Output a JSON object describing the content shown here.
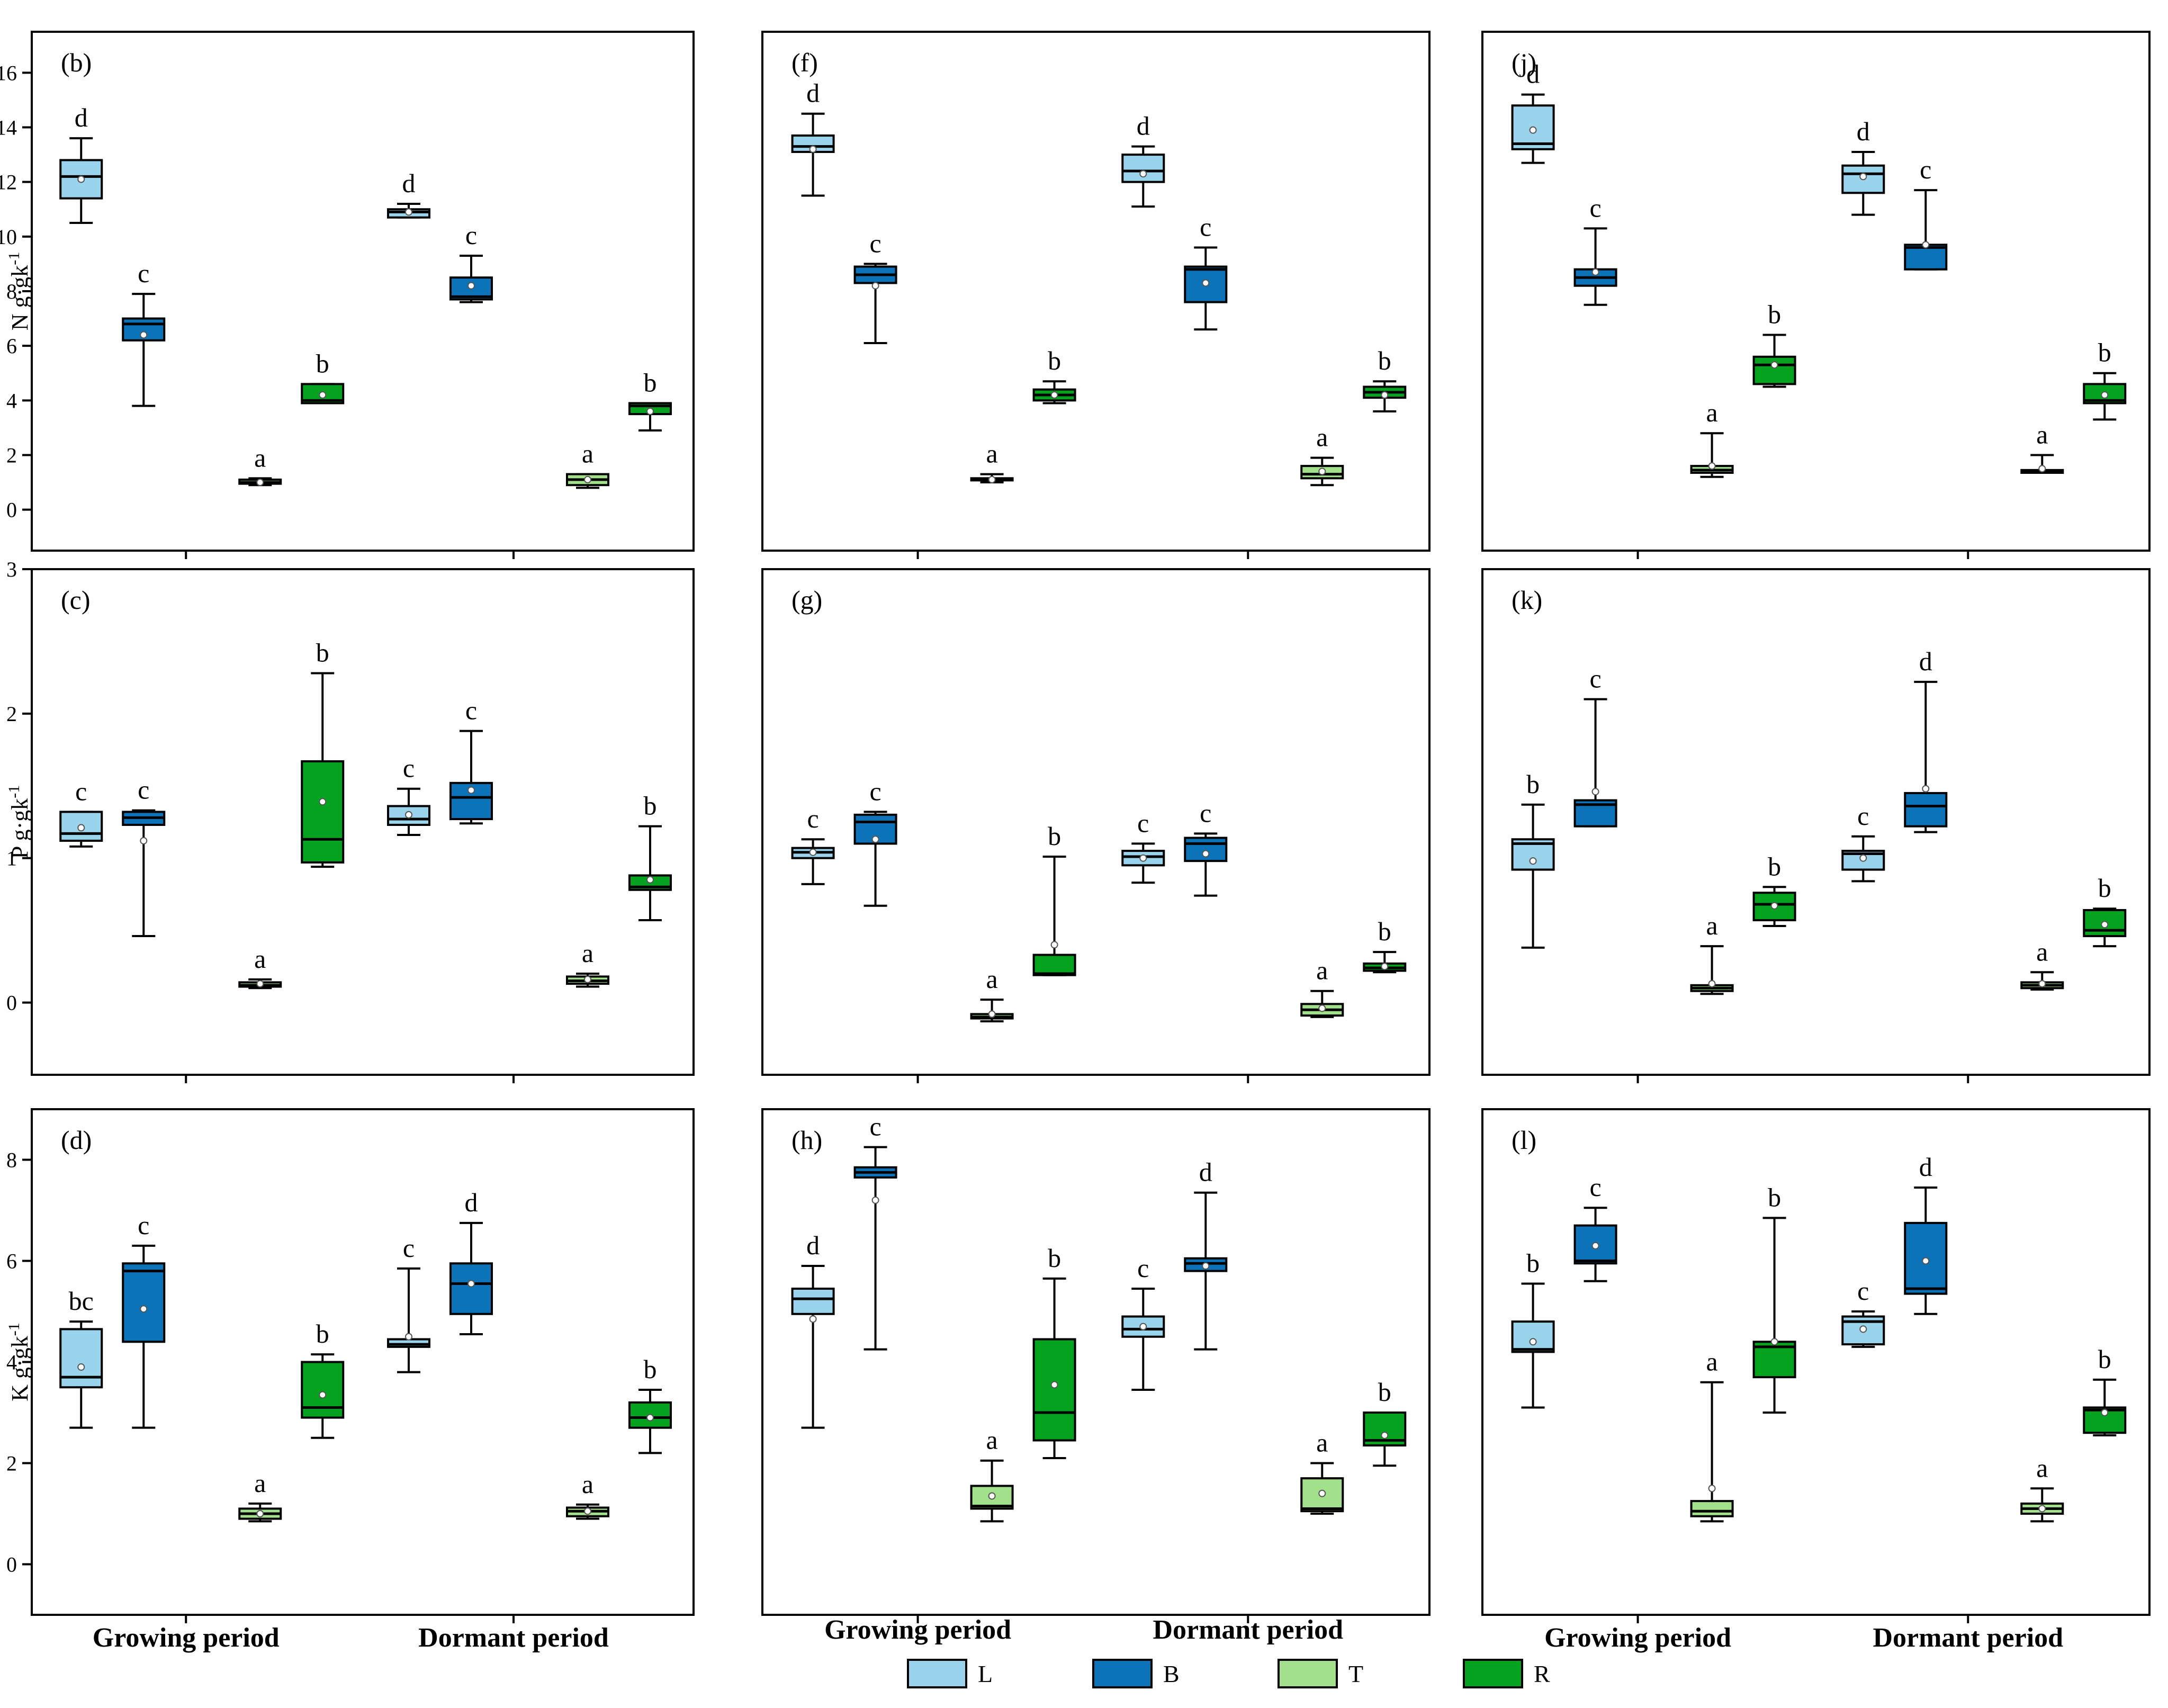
{
  "chart_data": {
    "type": "boxplot",
    "periods": [
      "Growing period",
      "Dormant period"
    ],
    "series_colors": {
      "L": "#99d3ec",
      "B": "#0c73b9",
      "T": "#a3e08c",
      "R": "#05a21f"
    },
    "legend": [
      {
        "key": "L",
        "label": "L"
      },
      {
        "key": "B",
        "label": "B"
      },
      {
        "key": "T",
        "label": "T"
      },
      {
        "key": "R",
        "label": "R"
      }
    ],
    "rows": [
      {
        "ylabel": "N g·gk",
        "ylabel_sup": "-1",
        "ylim": [
          -1.5,
          17.5
        ],
        "yticks": [
          0,
          2,
          4,
          6,
          8,
          10,
          12,
          14,
          16
        ]
      },
      {
        "ylabel": "P g·gk",
        "ylabel_sup": "-1",
        "ylim": [
          -0.5,
          3.0
        ],
        "yticks": [
          0,
          1,
          2,
          3
        ]
      },
      {
        "ylabel": "K g·gk",
        "ylabel_sup": "-1",
        "ylim": [
          -1.0,
          9.0
        ],
        "yticks": [
          0,
          2,
          4,
          6,
          8
        ]
      }
    ],
    "panels": [
      {
        "label": "(b)",
        "row": 0,
        "col": 0,
        "groups": [
          [
            {
              "s": "L",
              "min": 10.5,
              "q1": 11.4,
              "med": 12.2,
              "q3": 12.8,
              "max": 13.6,
              "mean": 12.1,
              "letter": "d"
            },
            {
              "s": "B",
              "min": 3.8,
              "q1": 6.2,
              "med": 6.8,
              "q3": 7.0,
              "max": 7.9,
              "mean": 6.4,
              "letter": "c"
            },
            {
              "s": "T",
              "min": 0.9,
              "q1": 0.95,
              "med": 1.0,
              "q3": 1.1,
              "max": 1.15,
              "mean": 1.0,
              "letter": "a"
            },
            {
              "s": "R",
              "min": 3.9,
              "q1": 3.9,
              "med": 4.0,
              "q3": 4.6,
              "max": 4.6,
              "mean": 4.2,
              "letter": "b"
            }
          ],
          [
            {
              "s": "L",
              "min": 10.7,
              "q1": 10.7,
              "med": 10.9,
              "q3": 11.0,
              "max": 11.2,
              "mean": 10.9,
              "letter": "d"
            },
            {
              "s": "B",
              "min": 7.6,
              "q1": 7.7,
              "med": 7.8,
              "q3": 8.5,
              "max": 9.3,
              "mean": 8.2,
              "letter": "c"
            },
            {
              "s": "T",
              "min": 0.8,
              "q1": 0.9,
              "med": 1.1,
              "q3": 1.3,
              "max": 1.3,
              "mean": 1.1,
              "letter": "a"
            },
            {
              "s": "R",
              "min": 2.9,
              "q1": 3.5,
              "med": 3.8,
              "q3": 3.9,
              "max": 3.9,
              "mean": 3.6,
              "letter": "b"
            }
          ]
        ]
      },
      {
        "label": "(f)",
        "row": 0,
        "col": 1,
        "groups": [
          [
            {
              "s": "L",
              "min": 11.5,
              "q1": 13.1,
              "med": 13.3,
              "q3": 13.7,
              "max": 14.5,
              "mean": 13.2,
              "letter": "d"
            },
            {
              "s": "B",
              "min": 6.1,
              "q1": 8.3,
              "med": 8.6,
              "q3": 8.9,
              "max": 9.0,
              "mean": 8.2,
              "letter": "c"
            },
            {
              "s": "T",
              "min": 1.0,
              "q1": 1.1,
              "med": 1.1,
              "q3": 1.15,
              "max": 1.3,
              "mean": 1.1,
              "letter": "a"
            },
            {
              "s": "R",
              "min": 3.9,
              "q1": 4.0,
              "med": 4.2,
              "q3": 4.4,
              "max": 4.7,
              "mean": 4.2,
              "letter": "b"
            }
          ],
          [
            {
              "s": "L",
              "min": 11.1,
              "q1": 12.0,
              "med": 12.4,
              "q3": 13.0,
              "max": 13.3,
              "mean": 12.3,
              "letter": "d"
            },
            {
              "s": "B",
              "min": 6.6,
              "q1": 7.6,
              "med": 8.8,
              "q3": 8.9,
              "max": 9.6,
              "mean": 8.3,
              "letter": "c"
            },
            {
              "s": "T",
              "min": 0.9,
              "q1": 1.15,
              "med": 1.3,
              "q3": 1.6,
              "max": 1.9,
              "mean": 1.4,
              "letter": "a"
            },
            {
              "s": "R",
              "min": 3.6,
              "q1": 4.1,
              "med": 4.3,
              "q3": 4.5,
              "max": 4.7,
              "mean": 4.2,
              "letter": "b"
            }
          ]
        ]
      },
      {
        "label": "(j)",
        "row": 0,
        "col": 2,
        "groups": [
          [
            {
              "s": "L",
              "min": 12.7,
              "q1": 13.2,
              "med": 13.4,
              "q3": 14.8,
              "max": 15.2,
              "mean": 13.9,
              "letter": "d"
            },
            {
              "s": "B",
              "min": 7.5,
              "q1": 8.2,
              "med": 8.5,
              "q3": 8.8,
              "max": 10.3,
              "mean": 8.7,
              "letter": "c"
            },
            {
              "s": "T",
              "min": 1.2,
              "q1": 1.35,
              "med": 1.45,
              "q3": 1.6,
              "max": 2.8,
              "mean": 1.6,
              "letter": "a"
            },
            {
              "s": "R",
              "min": 4.5,
              "q1": 4.6,
              "med": 5.3,
              "q3": 5.6,
              "max": 6.4,
              "mean": 5.3,
              "letter": "b"
            }
          ],
          [
            {
              "s": "L",
              "min": 10.8,
              "q1": 11.6,
              "med": 12.3,
              "q3": 12.6,
              "max": 13.1,
              "mean": 12.2,
              "letter": "d"
            },
            {
              "s": "B",
              "min": 8.8,
              "q1": 8.8,
              "med": 9.6,
              "q3": 9.7,
              "max": 11.7,
              "mean": 9.7,
              "letter": "c"
            },
            {
              "s": "T",
              "min": 1.35,
              "q1": 1.35,
              "med": 1.4,
              "q3": 1.45,
              "max": 2.0,
              "mean": 1.5,
              "letter": "a"
            },
            {
              "s": "R",
              "min": 3.3,
              "q1": 3.9,
              "med": 4.0,
              "q3": 4.6,
              "max": 5.0,
              "mean": 4.2,
              "letter": "b"
            }
          ]
        ]
      },
      {
        "label": "(c)",
        "row": 1,
        "col": 0,
        "groups": [
          [
            {
              "s": "L",
              "min": 1.08,
              "q1": 1.12,
              "med": 1.17,
              "q3": 1.32,
              "max": 1.32,
              "mean": 1.21,
              "letter": "c"
            },
            {
              "s": "B",
              "min": 0.46,
              "q1": 1.23,
              "med": 1.28,
              "q3": 1.32,
              "max": 1.33,
              "mean": 1.12,
              "letter": "c"
            },
            {
              "s": "T",
              "min": 0.1,
              "q1": 0.11,
              "med": 0.12,
              "q3": 0.14,
              "max": 0.16,
              "mean": 0.13,
              "letter": "a"
            },
            {
              "s": "R",
              "min": 0.94,
              "q1": 0.97,
              "med": 1.13,
              "q3": 1.67,
              "max": 2.28,
              "mean": 1.39,
              "letter": "b"
            }
          ],
          [
            {
              "s": "L",
              "min": 1.16,
              "q1": 1.23,
              "med": 1.27,
              "q3": 1.36,
              "max": 1.48,
              "mean": 1.3,
              "letter": "c"
            },
            {
              "s": "B",
              "min": 1.24,
              "q1": 1.27,
              "med": 1.42,
              "q3": 1.52,
              "max": 1.88,
              "mean": 1.47,
              "letter": "c"
            },
            {
              "s": "T",
              "min": 0.11,
              "q1": 0.13,
              "med": 0.15,
              "q3": 0.18,
              "max": 0.2,
              "mean": 0.16,
              "letter": "a"
            },
            {
              "s": "R",
              "min": 0.57,
              "q1": 0.78,
              "med": 0.8,
              "q3": 0.88,
              "max": 1.22,
              "mean": 0.85,
              "letter": "b"
            }
          ]
        ]
      },
      {
        "label": "(g)",
        "row": 1,
        "col": 1,
        "groups": [
          [
            {
              "s": "L",
              "min": 0.82,
              "q1": 1.0,
              "med": 1.04,
              "q3": 1.07,
              "max": 1.13,
              "mean": 1.04,
              "letter": "c"
            },
            {
              "s": "B",
              "min": 0.67,
              "q1": 1.1,
              "med": 1.25,
              "q3": 1.3,
              "max": 1.32,
              "mean": 1.13,
              "letter": "c"
            },
            {
              "s": "T",
              "min": -0.13,
              "q1": -0.11,
              "med": -0.1,
              "q3": -0.08,
              "max": 0.02,
              "mean": -0.08,
              "letter": "a"
            },
            {
              "s": "R",
              "min": 0.19,
              "q1": 0.19,
              "med": 0.2,
              "q3": 0.33,
              "max": 1.01,
              "mean": 0.4,
              "letter": "b"
            }
          ],
          [
            {
              "s": "L",
              "min": 0.83,
              "q1": 0.95,
              "med": 1.01,
              "q3": 1.05,
              "max": 1.1,
              "mean": 1.0,
              "letter": "c"
            },
            {
              "s": "B",
              "min": 0.74,
              "q1": 0.98,
              "med": 1.1,
              "q3": 1.14,
              "max": 1.17,
              "mean": 1.03,
              "letter": "c"
            },
            {
              "s": "T",
              "min": -0.1,
              "q1": -0.09,
              "med": -0.05,
              "q3": -0.01,
              "max": 0.08,
              "mean": -0.04,
              "letter": "a"
            },
            {
              "s": "R",
              "min": 0.21,
              "q1": 0.22,
              "med": 0.24,
              "q3": 0.27,
              "max": 0.35,
              "mean": 0.25,
              "letter": "b"
            }
          ]
        ]
      },
      {
        "label": "(k)",
        "row": 1,
        "col": 2,
        "groups": [
          [
            {
              "s": "L",
              "min": 0.38,
              "q1": 0.92,
              "med": 1.1,
              "q3": 1.13,
              "max": 1.37,
              "mean": 0.98,
              "letter": "b"
            },
            {
              "s": "B",
              "min": 1.22,
              "q1": 1.22,
              "med": 1.37,
              "q3": 1.4,
              "max": 2.1,
              "mean": 1.46,
              "letter": "c"
            },
            {
              "s": "T",
              "min": 0.06,
              "q1": 0.08,
              "med": 0.1,
              "q3": 0.12,
              "max": 0.39,
              "mean": 0.13,
              "letter": "a"
            },
            {
              "s": "R",
              "min": 0.53,
              "q1": 0.57,
              "med": 0.68,
              "q3": 0.76,
              "max": 0.8,
              "mean": 0.67,
              "letter": "b"
            }
          ],
          [
            {
              "s": "L",
              "min": 0.84,
              "q1": 0.92,
              "med": 1.03,
              "q3": 1.05,
              "max": 1.15,
              "mean": 1.0,
              "letter": "c"
            },
            {
              "s": "B",
              "min": 1.18,
              "q1": 1.22,
              "med": 1.36,
              "q3": 1.45,
              "max": 2.22,
              "mean": 1.48,
              "letter": "d"
            },
            {
              "s": "T",
              "min": 0.09,
              "q1": 0.1,
              "med": 0.12,
              "q3": 0.14,
              "max": 0.21,
              "mean": 0.13,
              "letter": "a"
            },
            {
              "s": "R",
              "min": 0.39,
              "q1": 0.46,
              "med": 0.5,
              "q3": 0.64,
              "max": 0.65,
              "mean": 0.54,
              "letter": "b"
            }
          ]
        ]
      },
      {
        "label": "(d)",
        "row": 2,
        "col": 0,
        "groups": [
          [
            {
              "s": "L",
              "min": 2.7,
              "q1": 3.5,
              "med": 3.7,
              "q3": 4.65,
              "max": 4.8,
              "mean": 3.9,
              "letter": "bc"
            },
            {
              "s": "B",
              "min": 2.7,
              "q1": 4.4,
              "med": 5.8,
              "q3": 5.95,
              "max": 6.3,
              "mean": 5.05,
              "letter": "c"
            },
            {
              "s": "T",
              "min": 0.85,
              "q1": 0.9,
              "med": 1.0,
              "q3": 1.1,
              "max": 1.2,
              "mean": 1.0,
              "letter": "a"
            },
            {
              "s": "R",
              "min": 2.5,
              "q1": 2.9,
              "med": 3.1,
              "q3": 4.0,
              "max": 4.15,
              "mean": 3.35,
              "letter": "b"
            }
          ],
          [
            {
              "s": "L",
              "min": 3.8,
              "q1": 4.3,
              "med": 4.35,
              "q3": 4.45,
              "max": 5.85,
              "mean": 4.5,
              "letter": "c"
            },
            {
              "s": "B",
              "min": 4.55,
              "q1": 4.95,
              "med": 5.55,
              "q3": 5.95,
              "max": 6.75,
              "mean": 5.55,
              "letter": "d"
            },
            {
              "s": "T",
              "min": 0.9,
              "q1": 0.95,
              "med": 1.05,
              "q3": 1.12,
              "max": 1.18,
              "mean": 1.05,
              "letter": "a"
            },
            {
              "s": "R",
              "min": 2.2,
              "q1": 2.7,
              "med": 2.9,
              "q3": 3.2,
              "max": 3.45,
              "mean": 2.9,
              "letter": "b"
            }
          ]
        ]
      },
      {
        "label": "(h)",
        "row": 2,
        "col": 1,
        "groups": [
          [
            {
              "s": "L",
              "min": 2.7,
              "q1": 4.95,
              "med": 5.25,
              "q3": 5.45,
              "max": 5.9,
              "mean": 4.85,
              "letter": "d"
            },
            {
              "s": "B",
              "min": 4.25,
              "q1": 7.65,
              "med": 7.75,
              "q3": 7.85,
              "max": 8.25,
              "mean": 7.2,
              "letter": "c"
            },
            {
              "s": "T",
              "min": 0.85,
              "q1": 1.1,
              "med": 1.15,
              "q3": 1.55,
              "max": 2.05,
              "mean": 1.35,
              "letter": "a"
            },
            {
              "s": "R",
              "min": 2.1,
              "q1": 2.45,
              "med": 3.0,
              "q3": 4.45,
              "max": 5.65,
              "mean": 3.55,
              "letter": "b"
            }
          ],
          [
            {
              "s": "L",
              "min": 3.45,
              "q1": 4.5,
              "med": 4.65,
              "q3": 4.9,
              "max": 5.45,
              "mean": 4.7,
              "letter": "c"
            },
            {
              "s": "B",
              "min": 4.25,
              "q1": 5.8,
              "med": 5.95,
              "q3": 6.05,
              "max": 7.35,
              "mean": 5.9,
              "letter": "d"
            },
            {
              "s": "T",
              "min": 1.0,
              "q1": 1.05,
              "med": 1.1,
              "q3": 1.7,
              "max": 2.0,
              "mean": 1.4,
              "letter": "a"
            },
            {
              "s": "R",
              "min": 1.95,
              "q1": 2.35,
              "med": 2.45,
              "q3": 3.0,
              "max": 3.0,
              "mean": 2.55,
              "letter": "b"
            }
          ]
        ]
      },
      {
        "label": "(l)",
        "row": 2,
        "col": 2,
        "groups": [
          [
            {
              "s": "L",
              "min": 3.1,
              "q1": 4.2,
              "med": 4.25,
              "q3": 4.8,
              "max": 5.55,
              "mean": 4.4,
              "letter": "b"
            },
            {
              "s": "B",
              "min": 5.6,
              "q1": 5.95,
              "med": 6.0,
              "q3": 6.7,
              "max": 7.05,
              "mean": 6.3,
              "letter": "c"
            },
            {
              "s": "T",
              "min": 0.85,
              "q1": 0.95,
              "med": 1.05,
              "q3": 1.25,
              "max": 3.6,
              "mean": 1.5,
              "letter": "a"
            },
            {
              "s": "R",
              "min": 3.0,
              "q1": 3.7,
              "med": 4.3,
              "q3": 4.4,
              "max": 6.85,
              "mean": 4.4,
              "letter": "b"
            }
          ],
          [
            {
              "s": "L",
              "min": 4.3,
              "q1": 4.35,
              "med": 4.8,
              "q3": 4.9,
              "max": 5.0,
              "mean": 4.65,
              "letter": "c"
            },
            {
              "s": "B",
              "min": 4.95,
              "q1": 5.35,
              "med": 5.45,
              "q3": 6.75,
              "max": 7.45,
              "mean": 6.0,
              "letter": "d"
            },
            {
              "s": "T",
              "min": 0.85,
              "q1": 1.0,
              "med": 1.1,
              "q3": 1.2,
              "max": 1.5,
              "mean": 1.1,
              "letter": "a"
            },
            {
              "s": "R",
              "min": 2.55,
              "q1": 2.6,
              "med": 3.05,
              "q3": 3.1,
              "max": 3.65,
              "mean": 3.0,
              "letter": "b"
            }
          ]
        ]
      }
    ]
  }
}
